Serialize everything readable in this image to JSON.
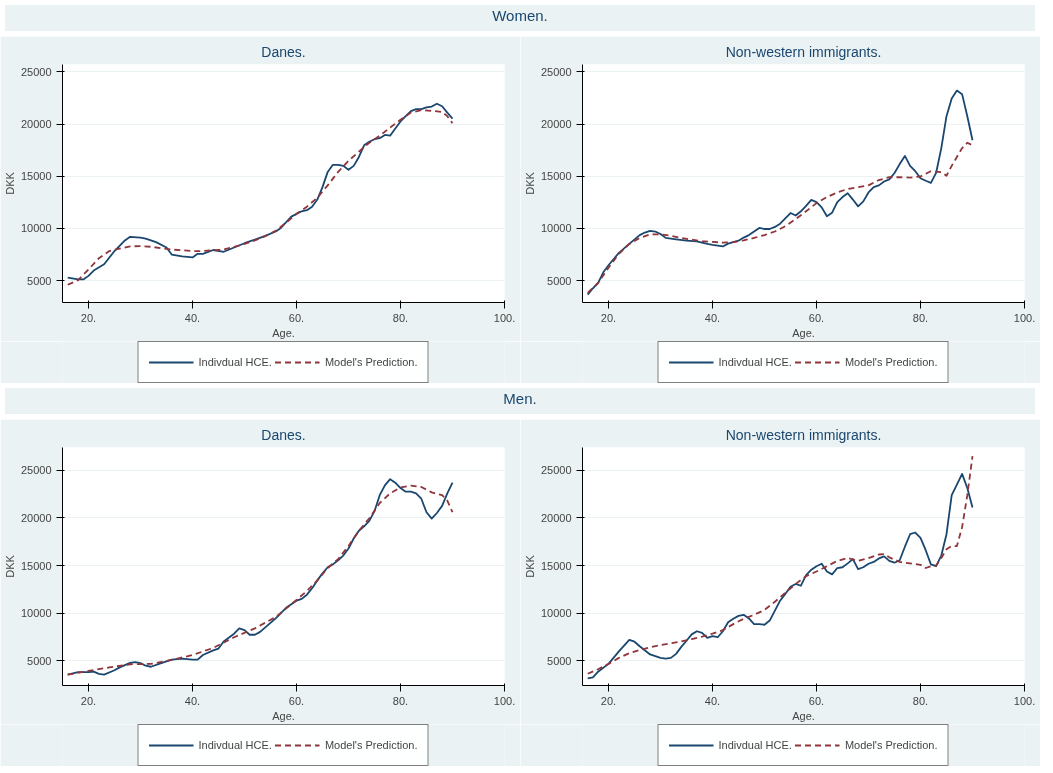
{
  "chart_data": [
    {
      "type": "line",
      "title": "Danes.",
      "annotations": [
        "Women."
      ],
      "xlabel": "Age.",
      "ylabel": "DKK",
      "xlim": [
        15,
        100
      ],
      "ylim": [
        2900,
        25700
      ],
      "xticks": [
        {
          "value": 20,
          "label": "20."
        },
        {
          "value": 40,
          "label": "40."
        },
        {
          "value": 60,
          "label": "60."
        },
        {
          "value": 80,
          "label": "80."
        },
        {
          "value": 100,
          "label": "100."
        }
      ],
      "yticks": [
        5000,
        10000,
        15000,
        20000,
        25000
      ],
      "grid": "y",
      "legend": "bottom",
      "series": [
        {
          "name": "Indivdual HCE.",
          "color": "#1a476f",
          "line_style": "solid",
          "x": [
            16,
            18,
            19,
            20,
            21,
            23,
            25,
            27,
            28,
            30,
            31,
            33,
            35,
            36,
            38,
            40,
            41,
            42,
            44,
            46,
            48,
            50,
            52,
            54,
            56,
            57,
            59,
            61,
            62,
            63,
            64,
            65,
            66,
            67,
            68,
            69,
            70,
            71,
            72,
            73,
            74,
            75,
            76,
            77,
            78,
            79,
            80,
            81,
            82,
            83,
            84,
            85,
            86,
            87,
            88,
            89,
            90
          ],
          "values": [
            5280,
            5110,
            5110,
            5450,
            5960,
            6570,
            7830,
            8850,
            9190,
            9120,
            9020,
            8680,
            8170,
            7490,
            7320,
            7220,
            7560,
            7560,
            7930,
            7760,
            8170,
            8580,
            8920,
            9290,
            9700,
            10040,
            11130,
            11640,
            11740,
            12080,
            12760,
            13950,
            15410,
            16090,
            16090,
            15990,
            15620,
            15990,
            16840,
            17960,
            18300,
            18540,
            18640,
            18950,
            18880,
            19560,
            20240,
            20750,
            21230,
            21430,
            21430,
            21600,
            21670,
            21940,
            21700,
            21090,
            20510
          ]
        },
        {
          "name": "Model's Prediction.",
          "color": "#90353b",
          "line_style": "dashed",
          "x": [
            16,
            18,
            20,
            22,
            24,
            26,
            28,
            30,
            32,
            34,
            36,
            38,
            40,
            42,
            44,
            46,
            48,
            50,
            52,
            54,
            56,
            58,
            60,
            62,
            64,
            66,
            68,
            70,
            72,
            74,
            76,
            78,
            80,
            82,
            84,
            86,
            88,
            89,
            90
          ],
          "values": [
            4600,
            5040,
            6060,
            7150,
            7830,
            8070,
            8270,
            8310,
            8240,
            8100,
            7970,
            7900,
            7830,
            7830,
            7900,
            7970,
            8240,
            8510,
            8850,
            9260,
            9770,
            10550,
            11400,
            12080,
            12930,
            14120,
            15410,
            16470,
            17350,
            18200,
            18880,
            19660,
            20410,
            21090,
            21330,
            21260,
            21160,
            20750,
            20070
          ]
        }
      ]
    },
    {
      "type": "line",
      "title": "Non-western immigrants.",
      "xlabel": "Age.",
      "ylabel": "DKK",
      "xlim": [
        15,
        100
      ],
      "ylim": [
        2900,
        25700
      ],
      "xticks": [
        {
          "value": 20,
          "label": "20."
        },
        {
          "value": 40,
          "label": "40."
        },
        {
          "value": 60,
          "label": "60."
        },
        {
          "value": 80,
          "label": "80."
        },
        {
          "value": 100,
          "label": "100."
        }
      ],
      "yticks": [
        5000,
        10000,
        15000,
        20000,
        25000
      ],
      "grid": "y",
      "legend": "bottom",
      "series": [
        {
          "name": "Indivdual HCE.",
          "color": "#1a476f",
          "line_style": "solid",
          "x": [
            16,
            17,
            18,
            19,
            20,
            22,
            24,
            26,
            27,
            28,
            29,
            30,
            31,
            33,
            35,
            37,
            39,
            40,
            42,
            43,
            45,
            46,
            47,
            48,
            49,
            50,
            51,
            52,
            53,
            54,
            55,
            56,
            57,
            58,
            59,
            60,
            61,
            62,
            63,
            64,
            65,
            66,
            67,
            68,
            69,
            70,
            71,
            72,
            73,
            74,
            75,
            76,
            77,
            78,
            79,
            80,
            81,
            82,
            83,
            84,
            85,
            86,
            87,
            88,
            89,
            90
          ],
          "values": [
            3650,
            4260,
            4770,
            5790,
            6470,
            7660,
            8510,
            9360,
            9600,
            9770,
            9700,
            9460,
            9090,
            8950,
            8820,
            8750,
            8510,
            8410,
            8270,
            8540,
            8820,
            9120,
            9360,
            9700,
            10040,
            9940,
            9940,
            10140,
            10450,
            10960,
            11470,
            11230,
            11640,
            12150,
            12730,
            12520,
            12010,
            11160,
            11500,
            12520,
            13000,
            13370,
            12760,
            12110,
            12590,
            13440,
            13950,
            14120,
            14490,
            14700,
            15310,
            16160,
            16940,
            15990,
            15480,
            14800,
            14560,
            14360,
            15310,
            17690,
            20750,
            22450,
            23200,
            22860,
            20750,
            18440
          ]
        },
        {
          "name": "Model's Prediction.",
          "color": "#90353b",
          "line_style": "dashed",
          "x": [
            16,
            18,
            20,
            22,
            24,
            26,
            28,
            30,
            32,
            34,
            36,
            38,
            40,
            42,
            44,
            46,
            48,
            50,
            52,
            54,
            56,
            58,
            60,
            62,
            64,
            66,
            68,
            70,
            72,
            74,
            76,
            78,
            80,
            82,
            84,
            85,
            86,
            88,
            89,
            90
          ],
          "values": [
            3820,
            4770,
            6230,
            7560,
            8510,
            9090,
            9430,
            9430,
            9290,
            9090,
            8920,
            8780,
            8710,
            8640,
            8680,
            8850,
            9090,
            9360,
            9700,
            10210,
            10890,
            11640,
            12420,
            13000,
            13440,
            13780,
            13950,
            14120,
            14630,
            14900,
            14900,
            14870,
            14970,
            15480,
            15380,
            15040,
            15990,
            17690,
            18200,
            17960
          ]
        }
      ]
    },
    {
      "type": "line",
      "title": "Danes.",
      "annotations": [
        "Men."
      ],
      "xlabel": "Age.",
      "ylabel": "DKK",
      "xlim": [
        15,
        100
      ],
      "ylim": [
        2400,
        27400
      ],
      "xticks": [
        {
          "value": 20,
          "label": "20."
        },
        {
          "value": 40,
          "label": "40."
        },
        {
          "value": 60,
          "label": "60."
        },
        {
          "value": 80,
          "label": "80."
        },
        {
          "value": 100,
          "label": "100."
        }
      ],
      "yticks": [
        5000,
        10000,
        15000,
        20000,
        25000
      ],
      "grid": "y",
      "legend": "bottom",
      "series": [
        {
          "name": "Indivdual HCE.",
          "color": "#1a476f",
          "line_style": "solid",
          "x": [
            16,
            18,
            20,
            21,
            22,
            23,
            25,
            26,
            28,
            29,
            30,
            31,
            32,
            34,
            36,
            38,
            40,
            41,
            42,
            44,
            45,
            46,
            48,
            49,
            50,
            51,
            52,
            53,
            54,
            56,
            58,
            60,
            61,
            62,
            63,
            64,
            65,
            66,
            67,
            68,
            69,
            70,
            71,
            72,
            73,
            74,
            75,
            76,
            77,
            78,
            79,
            80,
            81,
            82,
            83,
            84,
            85,
            86,
            87,
            88,
            89,
            90
          ],
          "values": [
            3550,
            3810,
            3810,
            3850,
            3630,
            3550,
            4000,
            4300,
            4780,
            4860,
            4750,
            4480,
            4370,
            4750,
            5120,
            5230,
            5120,
            5120,
            5600,
            6090,
            6280,
            7020,
            7840,
            8400,
            8220,
            7730,
            7730,
            8030,
            8510,
            9450,
            10560,
            11310,
            11500,
            11940,
            12620,
            13440,
            14180,
            14820,
            15120,
            15560,
            16050,
            16790,
            17840,
            18660,
            19110,
            19700,
            20710,
            22390,
            23430,
            24070,
            23700,
            23140,
            22760,
            22760,
            22580,
            22020,
            20600,
            19930,
            20520,
            21270,
            22580,
            23700
          ]
        },
        {
          "name": "Model's Prediction.",
          "color": "#90353b",
          "line_style": "dashed",
          "x": [
            16,
            20,
            24,
            28,
            32,
            36,
            40,
            44,
            48,
            52,
            56,
            60,
            62,
            64,
            66,
            68,
            70,
            72,
            74,
            76,
            78,
            80,
            82,
            84,
            86,
            88,
            89,
            90
          ],
          "values": [
            3550,
            3930,
            4300,
            4630,
            4670,
            5080,
            5600,
            6350,
            7470,
            8400,
            9590,
            11390,
            12320,
            13440,
            14740,
            15680,
            17050,
            18660,
            19960,
            21570,
            22580,
            23210,
            23400,
            23250,
            22690,
            22390,
            21830,
            20600
          ]
        }
      ]
    },
    {
      "type": "line",
      "title": "Non-western immigrants.",
      "xlabel": "Age.",
      "ylabel": "DKK",
      "xlim": [
        15,
        100
      ],
      "ylim": [
        2400,
        27400
      ],
      "xticks": [
        {
          "value": 20,
          "label": "20."
        },
        {
          "value": 40,
          "label": "40."
        },
        {
          "value": 60,
          "label": "60."
        },
        {
          "value": 80,
          "label": "80."
        },
        {
          "value": 100,
          "label": "100."
        }
      ],
      "yticks": [
        5000,
        10000,
        15000,
        20000,
        25000
      ],
      "grid": "y",
      "legend": "bottom",
      "series": [
        {
          "name": "Indivdual HCE.",
          "color": "#1a476f",
          "line_style": "solid",
          "x": [
            16,
            17,
            18,
            20,
            22,
            24,
            25,
            26,
            28,
            30,
            31,
            32,
            33,
            34,
            35,
            36,
            37,
            38,
            39,
            40,
            41,
            42,
            43,
            44,
            45,
            46,
            47,
            48,
            49,
            50,
            51,
            52,
            53,
            54,
            55,
            56,
            57,
            58,
            59,
            60,
            61,
            62,
            63,
            64,
            65,
            66,
            67,
            68,
            69,
            70,
            71,
            72,
            73,
            74,
            75,
            76,
            77,
            78,
            79,
            80,
            81,
            82,
            83,
            84,
            85,
            86,
            87,
            88,
            89,
            90
          ],
          "values": [
            3140,
            3250,
            3850,
            4670,
            5980,
            7190,
            7000,
            6520,
            5660,
            5300,
            5230,
            5300,
            5720,
            6460,
            7100,
            7770,
            8100,
            7920,
            7400,
            7580,
            7470,
            8100,
            9040,
            9410,
            9710,
            9820,
            9450,
            8850,
            8850,
            8780,
            9220,
            10270,
            11310,
            12020,
            12770,
            13070,
            12880,
            14000,
            14560,
            14930,
            15190,
            14370,
            14070,
            14740,
            14820,
            15230,
            15680,
            14630,
            14820,
            15190,
            15380,
            15750,
            15970,
            15490,
            15300,
            15560,
            16980,
            18290,
            18470,
            17910,
            16610,
            15120,
            14930,
            16050,
            18290,
            22390,
            23510,
            24630,
            23140,
            21090
          ]
        },
        {
          "name": "Model's Prediction.",
          "color": "#90353b",
          "line_style": "dashed",
          "x": [
            16,
            18,
            20,
            22,
            24,
            26,
            28,
            30,
            32,
            34,
            36,
            38,
            40,
            42,
            44,
            46,
            48,
            50,
            52,
            54,
            56,
            58,
            60,
            62,
            64,
            66,
            68,
            70,
            72,
            73,
            74,
            76,
            78,
            80,
            81,
            82,
            83,
            84,
            85,
            86,
            87,
            88,
            89,
            90
          ],
          "values": [
            3630,
            4110,
            4670,
            5300,
            5790,
            6130,
            6420,
            6650,
            6830,
            7020,
            7280,
            7540,
            7840,
            8220,
            8850,
            9410,
            9820,
            10340,
            11200,
            12130,
            13070,
            13880,
            14370,
            14930,
            15490,
            15790,
            15490,
            15790,
            16160,
            16200,
            15860,
            15380,
            15230,
            15080,
            14740,
            14930,
            15000,
            15790,
            16720,
            17050,
            17050,
            19030,
            22390,
            26490
          ]
        }
      ]
    }
  ]
}
